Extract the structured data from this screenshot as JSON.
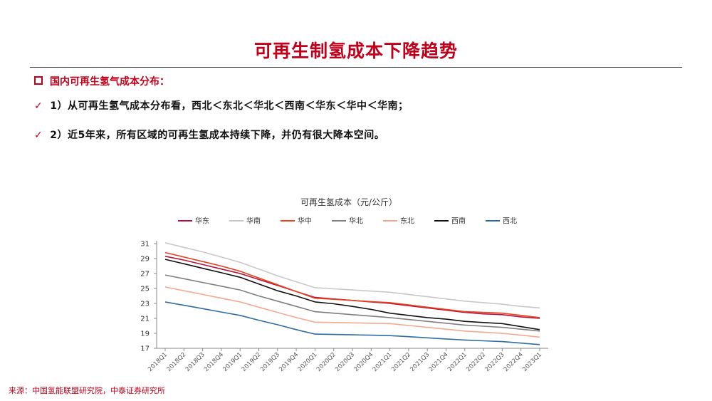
{
  "title": "可再生制氢成本下降趋势",
  "section_heading": "国内可再生氢气成本分布：",
  "bullets": [
    "1）从可再生氢气成本分布看，西北＜东北＜华北＜西南＜华东＜华中＜华南；",
    "2）近5年来，所有区域的可再生氢成本持续下降，并仍有很大降本空间。"
  ],
  "source": "来源：中国氢能联盟研究院，中泰证券研究所",
  "chart_data": {
    "type": "line",
    "title": "可再生氢成本（元/公斤）",
    "xlabel": "",
    "ylabel": "",
    "ylim": [
      17,
      31
    ],
    "yticks": [
      17,
      19,
      21,
      23,
      25,
      27,
      29,
      31
    ],
    "legend_position": "top",
    "grid": false,
    "categories": [
      "2018Q1",
      "2018Q2",
      "2018Q3",
      "2018Q4",
      "2019Q1",
      "2019Q2",
      "2019Q3",
      "2019Q4",
      "2020Q1",
      "2020Q2",
      "2020Q3",
      "2020Q4",
      "2021Q1",
      "2021Q2",
      "2021Q3",
      "2021Q4",
      "2022Q1",
      "2022Q2",
      "2022Q3",
      "2022Q4",
      "2023Q1"
    ],
    "series": [
      {
        "name": "华东",
        "color": "#b5123a",
        "values": [
          29.3,
          28.8,
          28.2,
          27.6,
          27.0,
          26.2,
          25.4,
          24.6,
          23.8,
          23.6,
          23.4,
          23.2,
          23.0,
          22.7,
          22.4,
          22.1,
          21.8,
          21.6,
          21.5,
          21.2,
          21.0
        ]
      },
      {
        "name": "华南",
        "color": "#c8c8c8",
        "values": [
          31.1,
          30.5,
          29.9,
          29.2,
          28.5,
          27.6,
          26.7,
          25.9,
          25.1,
          24.95,
          24.8,
          24.65,
          24.5,
          24.2,
          23.9,
          23.6,
          23.3,
          23.1,
          22.9,
          22.6,
          22.4
        ]
      },
      {
        "name": "华中",
        "color": "#e8401c",
        "values": [
          29.8,
          29.2,
          28.6,
          28.0,
          27.3,
          26.4,
          25.5,
          24.6,
          23.7,
          23.55,
          23.4,
          23.25,
          23.1,
          22.8,
          22.5,
          22.2,
          21.9,
          21.8,
          21.7,
          21.4,
          21.1
        ]
      },
      {
        "name": "华北",
        "color": "#7f7f7f",
        "values": [
          26.8,
          26.3,
          25.8,
          25.3,
          24.8,
          24.0,
          23.3,
          22.6,
          21.9,
          21.7,
          21.5,
          21.3,
          21.1,
          20.85,
          20.6,
          20.35,
          20.1,
          19.95,
          19.8,
          19.55,
          19.3
        ]
      },
      {
        "name": "东北",
        "color": "#f4a98c",
        "values": [
          25.2,
          24.7,
          24.2,
          23.7,
          23.2,
          22.5,
          21.8,
          21.1,
          20.5,
          20.45,
          20.4,
          20.35,
          20.3,
          20.05,
          19.8,
          19.55,
          19.3,
          19.15,
          19.0,
          18.75,
          18.5
        ]
      },
      {
        "name": "西南",
        "color": "#111111",
        "values": [
          28.9,
          28.3,
          27.7,
          27.1,
          26.5,
          25.6,
          24.7,
          24.0,
          23.2,
          22.95,
          22.6,
          22.2,
          21.7,
          21.4,
          21.1,
          20.9,
          20.6,
          20.45,
          20.3,
          19.9,
          19.5
        ]
      },
      {
        "name": "西北",
        "color": "#2e6da4",
        "values": [
          23.2,
          22.75,
          22.3,
          21.85,
          21.4,
          20.75,
          20.15,
          19.5,
          18.9,
          18.85,
          18.8,
          18.75,
          18.7,
          18.55,
          18.4,
          18.25,
          18.1,
          18.0,
          17.9,
          17.7,
          17.5
        ]
      }
    ]
  }
}
